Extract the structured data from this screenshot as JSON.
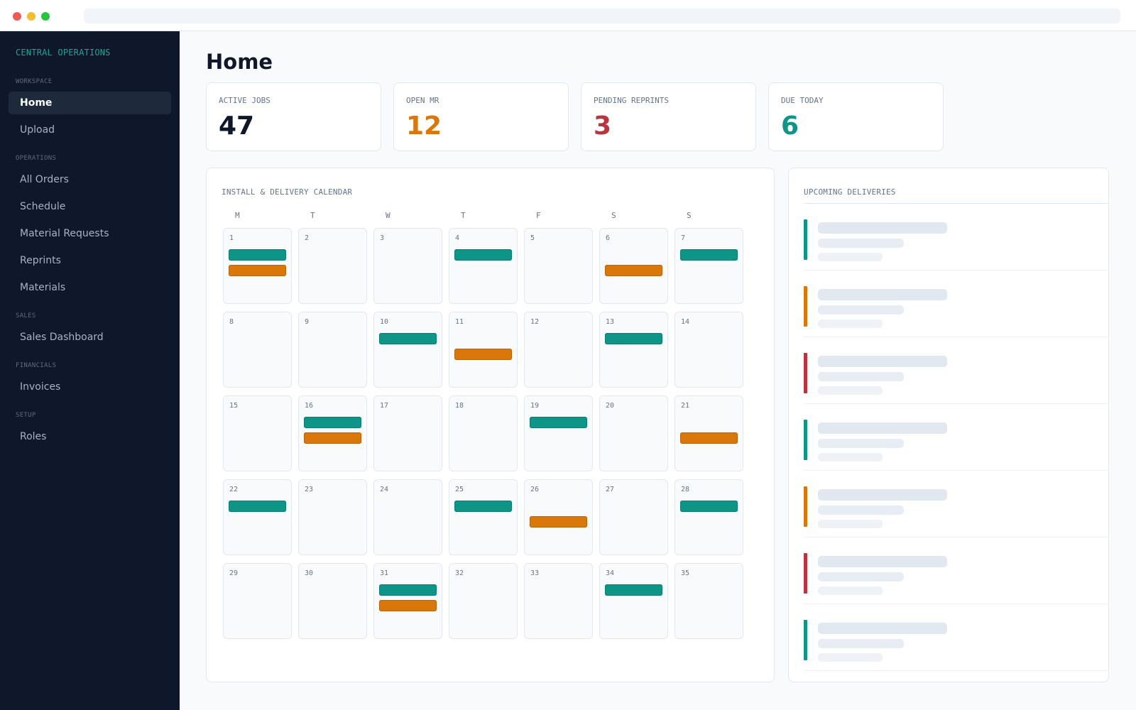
{
  "window": {
    "url": ""
  },
  "sidebar": {
    "brand": "CENTRAL OPERATIONS",
    "sections": [
      {
        "label": "WORKSPACE",
        "items": [
          {
            "label": "Home",
            "active": true
          },
          {
            "label": "Upload"
          }
        ]
      },
      {
        "label": "OPERATIONS",
        "items": [
          {
            "label": "All Orders"
          },
          {
            "label": "Schedule"
          },
          {
            "label": "Material Requests"
          },
          {
            "label": "Reprints"
          },
          {
            "label": "Materials"
          }
        ]
      },
      {
        "label": "SALES",
        "items": [
          {
            "label": "Sales Dashboard"
          }
        ]
      },
      {
        "label": "FINANCIALS",
        "items": [
          {
            "label": "Invoices"
          }
        ]
      },
      {
        "label": "SETUP",
        "items": [
          {
            "label": "Roles"
          }
        ]
      }
    ]
  },
  "main": {
    "title": "Home",
    "stats": [
      {
        "label": "ACTIVE JOBS",
        "value": "47",
        "color": "#0f172a"
      },
      {
        "label": "OPEN MR",
        "value": "12",
        "color": "#d9770a"
      },
      {
        "label": "PENDING REPRINTS",
        "value": "3",
        "color": "#b9343f"
      },
      {
        "label": "DUE TODAY",
        "value": "6",
        "color": "#0f9488"
      }
    ]
  },
  "calendar": {
    "title": "INSTALL & DELIVERY CALENDAR",
    "weekdays": [
      "M",
      "T",
      "W",
      "T",
      "F",
      "S",
      "S"
    ],
    "days": [
      {
        "num": "1",
        "events": [
          "teal",
          "orange"
        ]
      },
      {
        "num": "2",
        "events": []
      },
      {
        "num": "3",
        "events": []
      },
      {
        "num": "4",
        "events": [
          "teal"
        ]
      },
      {
        "num": "5",
        "events": []
      },
      {
        "num": "6",
        "events": [
          "",
          "orange"
        ]
      },
      {
        "num": "7",
        "events": [
          "teal"
        ]
      },
      {
        "num": "8",
        "events": []
      },
      {
        "num": "9",
        "events": []
      },
      {
        "num": "10",
        "events": [
          "teal"
        ]
      },
      {
        "num": "11",
        "events": [
          "",
          "orange"
        ]
      },
      {
        "num": "12",
        "events": []
      },
      {
        "num": "13",
        "events": [
          "teal"
        ]
      },
      {
        "num": "14",
        "events": []
      },
      {
        "num": "15",
        "events": []
      },
      {
        "num": "16",
        "events": [
          "teal",
          "orange"
        ]
      },
      {
        "num": "17",
        "events": []
      },
      {
        "num": "18",
        "events": []
      },
      {
        "num": "19",
        "events": [
          "teal"
        ]
      },
      {
        "num": "20",
        "events": []
      },
      {
        "num": "21",
        "events": [
          "",
          "orange"
        ]
      },
      {
        "num": "22",
        "events": [
          "teal"
        ]
      },
      {
        "num": "23",
        "events": []
      },
      {
        "num": "24",
        "events": []
      },
      {
        "num": "25",
        "events": [
          "teal"
        ]
      },
      {
        "num": "26",
        "events": [
          "",
          "orange"
        ]
      },
      {
        "num": "27",
        "events": []
      },
      {
        "num": "28",
        "events": [
          "teal"
        ]
      },
      {
        "num": "29",
        "events": []
      },
      {
        "num": "30",
        "events": []
      },
      {
        "num": "31",
        "events": [
          "teal",
          "orange"
        ]
      },
      {
        "num": "32",
        "events": []
      },
      {
        "num": "33",
        "events": []
      },
      {
        "num": "34",
        "events": [
          "teal"
        ]
      },
      {
        "num": "35",
        "events": []
      }
    ]
  },
  "deliveries": {
    "title": "UPCOMING DELIVERIES",
    "items": [
      {
        "status": "teal"
      },
      {
        "status": "orange"
      },
      {
        "status": "red"
      },
      {
        "status": "teal"
      },
      {
        "status": "orange"
      },
      {
        "status": "red"
      },
      {
        "status": "teal"
      }
    ]
  },
  "colors": {
    "teal": "#0f9488",
    "orange": "#d9770a",
    "red": "#b9343f",
    "sidebar_bg": "#0f172a",
    "brand": "#19a695"
  }
}
